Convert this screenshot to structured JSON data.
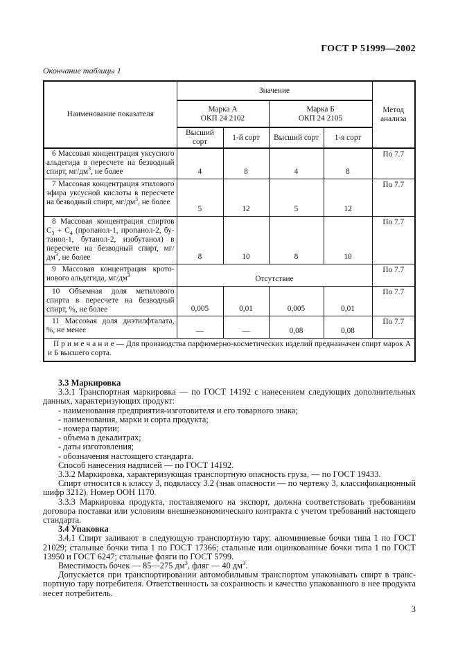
{
  "page": {
    "header": "ГОСТ Р 51999—2002",
    "caption": "Окончание таблицы 1",
    "number": "3"
  },
  "table": {
    "col_name": "Наименование показателя",
    "col_value": "Значение",
    "brand_a": {
      "name": "Марка А",
      "code": "ОКП 24 2102"
    },
    "brand_b": {
      "name": "Марка Б",
      "code": "ОКП 24 2105"
    },
    "grades": [
      "Высший сорт",
      "1-й сорт",
      "Высший сорт",
      "1-я сорт"
    ],
    "col_method": "Метод анализа",
    "rows": [
      {
        "name": "6 Массовая концентрация уксус­ного альдегида в пересчете на безводный спирт, мг/дм^{3}, не более",
        "values": [
          "4",
          "8",
          "4",
          "8"
        ],
        "method": "По 7.7"
      },
      {
        "name": "7 Массовая концентрация этило­вого эфира уксусной кислоты в пе­ресчете на безводный спирт, мг/дм^{3}, не более",
        "values": [
          "5",
          "12",
          "5",
          "12"
        ],
        "method": "По 7.7"
      },
      {
        "name": "8 Массовая концентрация спиртов С_{3} + С_{4} (пропанол-1, пропанол-2, бу­танол-1, бутанол-2, изобутанол) в пересчете на безводный спирт, мг/дм^{3}, не более",
        "values": [
          "8",
          "10",
          "8",
          "10"
        ],
        "method": "По 7.7"
      },
      {
        "name": "9 Массовая концентрация крото­нового альдегида, мг/дм^{3}",
        "merged": "Отсутствие",
        "method": "По 7.7"
      },
      {
        "name": "10 Объемная доля метилового спирта в пересчете на безводный спирт, %, не более",
        "values": [
          "0,005",
          "0,01",
          "0,005",
          "0,01"
        ],
        "method": "По 7.7"
      },
      {
        "name": "11 Массовая доля диэтилфталата, %, не менее",
        "values": [
          "—",
          "—",
          "0,08",
          "0,08"
        ],
        "method": "По 7.7"
      }
    ],
    "note": "П р и м е ч а н и е — Для производства парфюмерно-косметических изделий предназначен спирт марок А и Б высшего сорта."
  },
  "sections": [
    {
      "type": "heading",
      "text": "3.3 Маркировка"
    },
    {
      "type": "para",
      "text": "3.3.1 Транспортная маркировка — по ГОСТ 14192 с нанесением следующих дополнительных данных, характеризующих продукт:"
    },
    {
      "type": "list",
      "text": "- наименования предприятия-изготовителя и его товарного знака;"
    },
    {
      "type": "list",
      "text": "- наименования, марки и сорта продукта;"
    },
    {
      "type": "list",
      "text": "- номера партии;"
    },
    {
      "type": "list",
      "text": "- объема в декалитрах;"
    },
    {
      "type": "list",
      "text": "- даты изготовления;"
    },
    {
      "type": "list",
      "text": "- обозначения настоящего стандарта."
    },
    {
      "type": "para",
      "text": "Способ нанесения надписей — по ГОСТ 14192."
    },
    {
      "type": "para",
      "text": "3.3.2 Маркировка, характеризующая транспортную опасность груза, — по ГОСТ 19433."
    },
    {
      "type": "para",
      "text": "Спирт относится к классу 3, подклассу 3.2 (знак опасности — по чертежу 3, классификацион­ный шифр 3212). Номер ООН 1170."
    },
    {
      "type": "para",
      "text": "3.3.3 Маркировка продукта, поставляемого на экспорт, должна соответствовать требованиям договора поставки или условиям внешнеэкономического контракта с учетом требований настоящего стандарта."
    },
    {
      "type": "heading",
      "text": "3.4 Упаковка"
    },
    {
      "type": "para",
      "text": "3.4.1 Спирт заливают в следующую транспортную тару: алюминиевые бочки типа 1 по ГОСТ 21029; стальные бочки типа 1 по ГОСТ 17366; стальные или оцинкованные бочки типа 1 по ГОСТ 13950 и ГОСТ 6247; стальные фляги по ГОСТ 5799."
    },
    {
      "type": "para",
      "text": "Вместимость бочек — 85—275 дм^{3}, фляг — 40 дм^{3}."
    },
    {
      "type": "para",
      "text": "Допускается при транспортировании автомобильным транспортом упаковывать спирт в транс­портную тару потребителя. Ответственность за сохранность и качество упакованного в нее продукта несет потребитель."
    }
  ]
}
